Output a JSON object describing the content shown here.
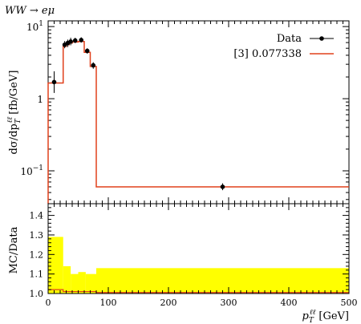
{
  "chart_data": [
    {
      "type": "scatter+step",
      "title": "WW → eμ",
      "ylabel": "dσ/dp",
      "ylabel_sup": "ℓℓ",
      "ylabel_sub": "T",
      "ylabel_unit": "[fb/GeV]",
      "yscale": "log",
      "ylim": [
        0.035,
        12
      ],
      "xlim": [
        0,
        500
      ],
      "yticks": [
        {
          "value": 10,
          "base": "10",
          "exp": "1"
        },
        {
          "value": 1,
          "base": "1",
          "exp": ""
        },
        {
          "value": 0.1,
          "base": "10",
          "exp": "−1"
        }
      ],
      "legend_position": "top-right",
      "series": [
        {
          "name": "Data",
          "color": "#000000",
          "points": [
            {
              "x": 10,
              "y": 1.7,
              "err_lo": 1.2,
              "err_hi": 2.4
            },
            {
              "x": 27.5,
              "y": 5.6,
              "err_lo": 5.0,
              "err_hi": 6.3
            },
            {
              "x": 32.5,
              "y": 5.9,
              "err_lo": 5.2,
              "err_hi": 6.6
            },
            {
              "x": 37.5,
              "y": 6.2,
              "err_lo": 5.5,
              "err_hi": 7.0
            },
            {
              "x": 45,
              "y": 6.4,
              "err_lo": 5.9,
              "err_hi": 7.0
            },
            {
              "x": 55,
              "y": 6.5,
              "err_lo": 6.0,
              "err_hi": 7.1
            },
            {
              "x": 65,
              "y": 4.6,
              "err_lo": 4.2,
              "err_hi": 5.0
            },
            {
              "x": 75,
              "y": 2.9,
              "err_lo": 2.6,
              "err_hi": 3.2
            },
            {
              "x": 290,
              "y": 0.06,
              "err_lo": 0.054,
              "err_hi": 0.067
            }
          ]
        },
        {
          "name": "[3] 0.077338",
          "color": "#e0401c",
          "bins": [
            {
              "x0": 0,
              "x1": 25,
              "y": 1.65
            },
            {
              "x0": 25,
              "x1": 30,
              "y": 5.3
            },
            {
              "x0": 30,
              "x1": 35,
              "y": 5.6
            },
            {
              "x0": 35,
              "x1": 40,
              "y": 5.9
            },
            {
              "x0": 40,
              "x1": 50,
              "y": 6.1
            },
            {
              "x0": 50,
              "x1": 60,
              "y": 6.2
            },
            {
              "x0": 60,
              "x1": 70,
              "y": 4.4
            },
            {
              "x0": 70,
              "x1": 80,
              "y": 2.8
            },
            {
              "x0": 80,
              "x1": 500,
              "y": 0.06
            }
          ]
        }
      ]
    },
    {
      "type": "ratio",
      "ylabel": "MC/Data",
      "xlabel": "p",
      "xlabel_sup": "ℓℓ",
      "xlabel_sub": "T",
      "xlabel_unit": "[GeV]",
      "xlim": [
        0,
        500
      ],
      "ylim": [
        1.0,
        1.46
      ],
      "xticks": [
        0,
        100,
        200,
        300,
        400,
        500
      ],
      "yticks": [
        1.0,
        1.1,
        1.2,
        1.3,
        1.4
      ],
      "band_color": "#ffff00",
      "band": [
        {
          "x0": 0,
          "x1": 25,
          "hi": 1.29
        },
        {
          "x0": 25,
          "x1": 37.5,
          "hi": 1.14
        },
        {
          "x0": 37.5,
          "x1": 50,
          "hi": 1.1
        },
        {
          "x0": 50,
          "x1": 62.5,
          "hi": 1.11
        },
        {
          "x0": 62.5,
          "x1": 80,
          "hi": 1.1
        },
        {
          "x0": 80,
          "x1": 500,
          "hi": 1.13
        }
      ],
      "ratio_line": [
        {
          "x0": 0,
          "x1": 25,
          "y": 1.02
        },
        {
          "x0": 25,
          "x1": 80,
          "y": 1.01
        },
        {
          "x0": 80,
          "x1": 500,
          "y": 1.005
        }
      ]
    }
  ]
}
